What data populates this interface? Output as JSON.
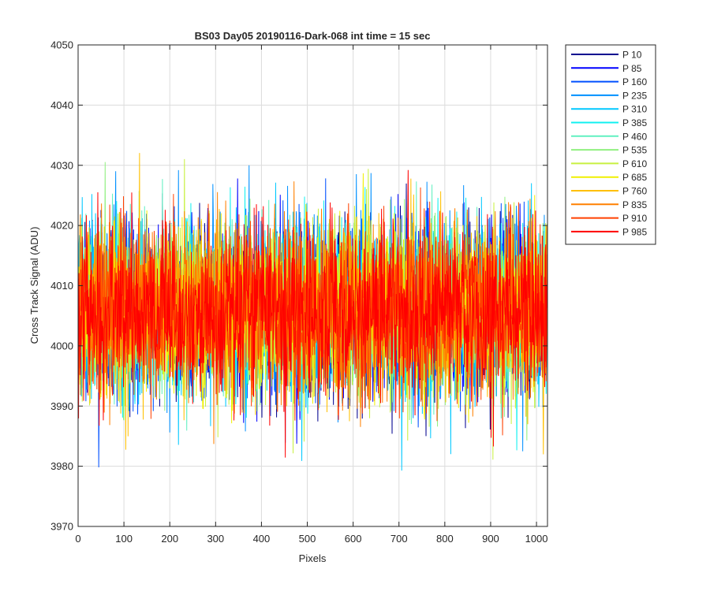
{
  "chart_data": {
    "type": "line",
    "title": "BS03 Day05 20190116-Dark-068 int time = 15 sec",
    "xlabel": "Pixels",
    "ylabel": "Cross Track Signal (ADU)",
    "xlim": [
      0,
      1024
    ],
    "ylim": [
      3970,
      4050
    ],
    "xticks": [
      0,
      100,
      200,
      300,
      400,
      500,
      600,
      700,
      800,
      900,
      1000
    ],
    "yticks": [
      3970,
      3980,
      3990,
      4000,
      4010,
      4020,
      4030,
      4040,
      4050
    ],
    "grid": true,
    "legend_location": "outside-top-right",
    "n_points": 1024,
    "signal_mean": 4006,
    "signal_spread": 7,
    "series": [
      {
        "name": "P 10",
        "color": "#00008f"
      },
      {
        "name": "P 85",
        "color": "#0000ff"
      },
      {
        "name": "P 160",
        "color": "#0050ff"
      },
      {
        "name": "P 235",
        "color": "#0090ff"
      },
      {
        "name": "P 310",
        "color": "#00c8ff"
      },
      {
        "name": "P 385",
        "color": "#10f0f0"
      },
      {
        "name": "P 460",
        "color": "#60f0c0"
      },
      {
        "name": "P 535",
        "color": "#90f080"
      },
      {
        "name": "P 610",
        "color": "#c8f040"
      },
      {
        "name": "P 685",
        "color": "#f0f000"
      },
      {
        "name": "P 760",
        "color": "#ffc000"
      },
      {
        "name": "P 835",
        "color": "#ff8000"
      },
      {
        "name": "P 910",
        "color": "#ff4000"
      },
      {
        "name": "P 985",
        "color": "#ff0000"
      }
    ]
  }
}
